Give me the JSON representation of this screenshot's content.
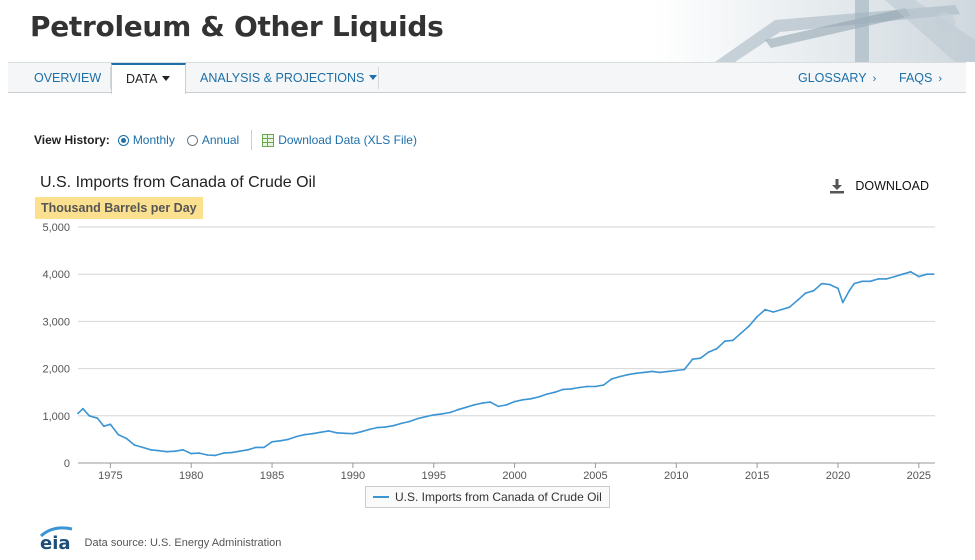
{
  "header": {
    "title": "Petroleum & Other Liquids"
  },
  "nav": {
    "overview": "OVERVIEW",
    "data": "DATA",
    "analysis": "ANALYSIS & PROJECTIONS",
    "glossary": "GLOSSARY",
    "faqs": "FAQS"
  },
  "view_history": {
    "label": "View History:",
    "monthly": "Monthly",
    "annual": "Annual",
    "selected": "Monthly",
    "download_data": "Download Data (XLS File)"
  },
  "chart_header": {
    "title": "U.S. Imports from Canada of Crude Oil",
    "units": "Thousand Barrels per Day",
    "download": "DOWNLOAD"
  },
  "chart_data": {
    "type": "line",
    "title": "U.S. Imports from Canada of Crude Oil",
    "ylabel": "Thousand Barrels per Day",
    "xlabel": "",
    "xlim": [
      1973,
      2026
    ],
    "ylim": [
      0,
      5000
    ],
    "x_ticks": [
      1975,
      1980,
      1985,
      1990,
      1995,
      2000,
      2005,
      2010,
      2015,
      2020,
      2025
    ],
    "y_ticks": [
      0,
      1000,
      2000,
      3000,
      4000,
      5000
    ],
    "y_tick_labels": [
      "0",
      "1,000",
      "2,000",
      "3,000",
      "4,000",
      "5,000"
    ],
    "grid": true,
    "legend_position": "bottom-center",
    "series": [
      {
        "name": "U.S. Imports from Canada of Crude Oil",
        "color": "#3b95d3",
        "points": [
          [
            1973.0,
            1050
          ],
          [
            1973.3,
            1150
          ],
          [
            1973.7,
            1000
          ],
          [
            1974.2,
            950
          ],
          [
            1974.6,
            780
          ],
          [
            1975.0,
            820
          ],
          [
            1975.5,
            600
          ],
          [
            1976.0,
            520
          ],
          [
            1976.5,
            380
          ],
          [
            1977.0,
            330
          ],
          [
            1977.5,
            280
          ],
          [
            1978.0,
            260
          ],
          [
            1978.5,
            240
          ],
          [
            1979.0,
            250
          ],
          [
            1979.5,
            280
          ],
          [
            1980.0,
            200
          ],
          [
            1980.5,
            210
          ],
          [
            1981.0,
            170
          ],
          [
            1981.5,
            160
          ],
          [
            1982.0,
            210
          ],
          [
            1982.5,
            220
          ],
          [
            1983.0,
            250
          ],
          [
            1983.5,
            280
          ],
          [
            1984.0,
            330
          ],
          [
            1984.5,
            330
          ],
          [
            1985.0,
            450
          ],
          [
            1985.5,
            470
          ],
          [
            1986.0,
            500
          ],
          [
            1986.5,
            560
          ],
          [
            1987.0,
            600
          ],
          [
            1987.5,
            620
          ],
          [
            1988.0,
            650
          ],
          [
            1988.5,
            680
          ],
          [
            1989.0,
            640
          ],
          [
            1989.5,
            630
          ],
          [
            1990.0,
            620
          ],
          [
            1990.5,
            660
          ],
          [
            1991.0,
            710
          ],
          [
            1991.5,
            750
          ],
          [
            1992.0,
            760
          ],
          [
            1992.5,
            790
          ],
          [
            1993.0,
            840
          ],
          [
            1993.5,
            880
          ],
          [
            1994.0,
            940
          ],
          [
            1994.5,
            980
          ],
          [
            1995.0,
            1020
          ],
          [
            1995.5,
            1040
          ],
          [
            1996.0,
            1070
          ],
          [
            1996.5,
            1130
          ],
          [
            1997.0,
            1180
          ],
          [
            1997.5,
            1230
          ],
          [
            1998.0,
            1270
          ],
          [
            1998.5,
            1290
          ],
          [
            1999.0,
            1200
          ],
          [
            1999.5,
            1230
          ],
          [
            2000.0,
            1300
          ],
          [
            2000.5,
            1340
          ],
          [
            2001.0,
            1360
          ],
          [
            2001.5,
            1400
          ],
          [
            2002.0,
            1460
          ],
          [
            2002.5,
            1500
          ],
          [
            2003.0,
            1560
          ],
          [
            2003.5,
            1570
          ],
          [
            2004.0,
            1600
          ],
          [
            2004.5,
            1620
          ],
          [
            2005.0,
            1620
          ],
          [
            2005.5,
            1650
          ],
          [
            2006.0,
            1780
          ],
          [
            2006.5,
            1830
          ],
          [
            2007.0,
            1870
          ],
          [
            2007.5,
            1900
          ],
          [
            2008.0,
            1920
          ],
          [
            2008.5,
            1940
          ],
          [
            2009.0,
            1920
          ],
          [
            2009.5,
            1940
          ],
          [
            2010.0,
            1960
          ],
          [
            2010.5,
            1980
          ],
          [
            2011.0,
            2200
          ],
          [
            2011.5,
            2220
          ],
          [
            2012.0,
            2350
          ],
          [
            2012.5,
            2420
          ],
          [
            2013.0,
            2580
          ],
          [
            2013.5,
            2600
          ],
          [
            2014.0,
            2750
          ],
          [
            2014.5,
            2900
          ],
          [
            2015.0,
            3100
          ],
          [
            2015.5,
            3250
          ],
          [
            2016.0,
            3200
          ],
          [
            2016.5,
            3250
          ],
          [
            2017.0,
            3300
          ],
          [
            2017.5,
            3450
          ],
          [
            2018.0,
            3600
          ],
          [
            2018.5,
            3650
          ],
          [
            2019.0,
            3800
          ],
          [
            2019.5,
            3780
          ],
          [
            2020.0,
            3700
          ],
          [
            2020.3,
            3400
          ],
          [
            2020.7,
            3650
          ],
          [
            2021.0,
            3800
          ],
          [
            2021.5,
            3850
          ],
          [
            2022.0,
            3850
          ],
          [
            2022.5,
            3900
          ],
          [
            2023.0,
            3900
          ],
          [
            2023.5,
            3950
          ],
          [
            2024.0,
            4000
          ],
          [
            2024.5,
            4050
          ],
          [
            2025.0,
            3950
          ],
          [
            2025.5,
            4000
          ],
          [
            2025.9,
            4000
          ]
        ]
      }
    ]
  },
  "legend": {
    "label": "U.S. Imports from Canada of Crude Oil"
  },
  "footer": {
    "logo": "eia",
    "source": "Data source: U.S. Energy Administration"
  }
}
